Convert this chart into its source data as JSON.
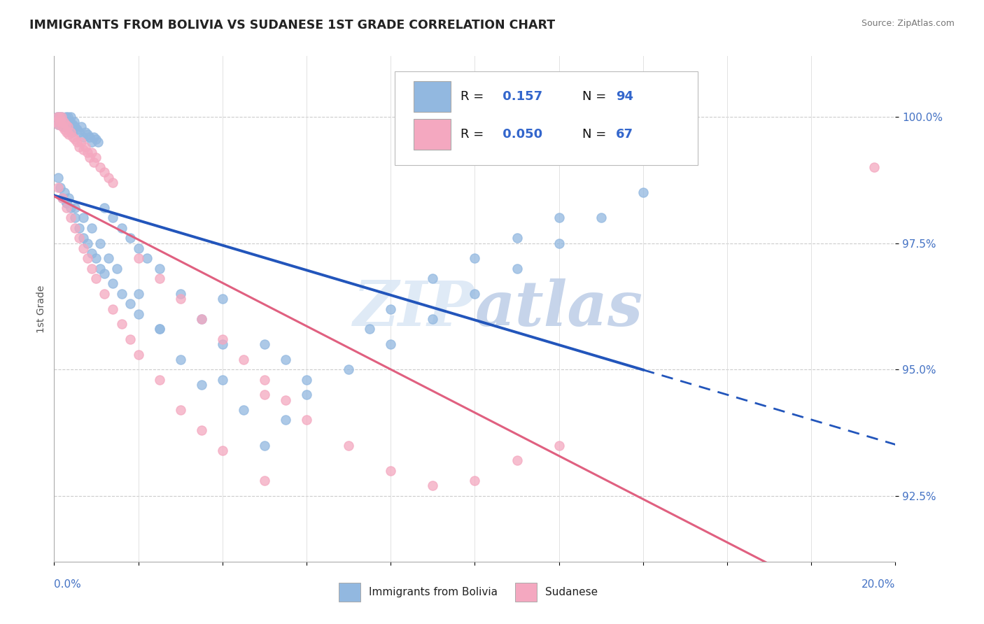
{
  "title": "IMMIGRANTS FROM BOLIVIA VS SUDANESE 1ST GRADE CORRELATION CHART",
  "source": "Source: ZipAtlas.com",
  "ylabel": "1st Grade",
  "ytick_values": [
    92.5,
    95.0,
    97.5,
    100.0
  ],
  "xmin": 0.0,
  "xmax": 20.0,
  "ymin": 91.2,
  "ymax": 101.2,
  "bolivia_color": "#92b8e0",
  "sudanese_color": "#f4a8c0",
  "bolivia_line_color": "#2255bb",
  "sudanese_line_color": "#e06080",
  "bolivia_x": [
    0.05,
    0.08,
    0.1,
    0.12,
    0.15,
    0.18,
    0.2,
    0.22,
    0.25,
    0.28,
    0.3,
    0.32,
    0.35,
    0.38,
    0.4,
    0.42,
    0.45,
    0.48,
    0.5,
    0.55,
    0.6,
    0.65,
    0.7,
    0.75,
    0.8,
    0.85,
    0.9,
    0.95,
    1.0,
    1.05,
    0.1,
    0.15,
    0.2,
    0.25,
    0.3,
    0.35,
    0.4,
    0.5,
    0.6,
    0.7,
    0.8,
    0.9,
    1.0,
    1.1,
    1.2,
    1.4,
    1.6,
    1.8,
    2.0,
    2.5,
    1.2,
    1.4,
    1.6,
    1.8,
    2.0,
    2.2,
    2.5,
    3.0,
    3.5,
    4.0,
    4.0,
    5.0,
    5.5,
    6.0,
    7.5,
    8.0,
    9.0,
    10.0,
    11.0,
    12.0,
    0.3,
    0.5,
    0.7,
    0.9,
    1.1,
    1.3,
    1.5,
    2.0,
    2.5,
    3.0,
    3.5,
    4.0,
    4.5,
    5.0,
    5.5,
    6.0,
    7.0,
    8.0,
    9.0,
    10.0,
    11.0,
    12.0,
    13.0,
    14.0
  ],
  "bolivia_y": [
    99.9,
    100.0,
    99.85,
    100.0,
    99.9,
    100.0,
    99.85,
    99.95,
    99.8,
    100.0,
    99.9,
    100.0,
    99.8,
    99.9,
    100.0,
    99.7,
    99.85,
    99.9,
    99.8,
    99.75,
    99.7,
    99.8,
    99.6,
    99.7,
    99.65,
    99.6,
    99.5,
    99.6,
    99.55,
    99.5,
    98.8,
    98.6,
    98.4,
    98.5,
    98.3,
    98.4,
    98.2,
    98.0,
    97.8,
    97.6,
    97.5,
    97.3,
    97.2,
    97.0,
    96.9,
    96.7,
    96.5,
    96.3,
    96.1,
    95.8,
    98.2,
    98.0,
    97.8,
    97.6,
    97.4,
    97.2,
    97.0,
    96.5,
    96.0,
    95.5,
    96.4,
    95.5,
    95.2,
    94.8,
    95.8,
    96.2,
    96.8,
    97.2,
    97.6,
    98.0,
    98.3,
    98.2,
    98.0,
    97.8,
    97.5,
    97.2,
    97.0,
    96.5,
    95.8,
    95.2,
    94.7,
    94.8,
    94.2,
    93.5,
    94.0,
    94.5,
    95.0,
    95.5,
    96.0,
    96.5,
    97.0,
    97.5,
    98.0,
    98.5
  ],
  "sudanese_x": [
    0.05,
    0.08,
    0.1,
    0.12,
    0.15,
    0.18,
    0.2,
    0.22,
    0.25,
    0.28,
    0.3,
    0.32,
    0.35,
    0.4,
    0.45,
    0.5,
    0.55,
    0.6,
    0.65,
    0.7,
    0.75,
    0.8,
    0.85,
    0.9,
    0.95,
    1.0,
    1.1,
    1.2,
    1.3,
    1.4,
    0.1,
    0.2,
    0.3,
    0.4,
    0.5,
    0.6,
    0.7,
    0.8,
    0.9,
    1.0,
    1.2,
    1.4,
    1.6,
    1.8,
    2.0,
    2.5,
    3.0,
    3.5,
    4.0,
    5.0,
    2.0,
    2.5,
    3.0,
    3.5,
    4.0,
    4.5,
    5.0,
    5.5,
    6.0,
    7.0,
    8.0,
    9.0,
    10.0,
    11.0,
    12.0,
    5.0,
    19.5
  ],
  "sudanese_y": [
    99.9,
    100.0,
    99.85,
    100.0,
    99.9,
    100.0,
    99.8,
    99.9,
    99.75,
    99.85,
    99.7,
    99.8,
    99.65,
    99.7,
    99.6,
    99.55,
    99.5,
    99.4,
    99.5,
    99.35,
    99.4,
    99.3,
    99.2,
    99.3,
    99.1,
    99.2,
    99.0,
    98.9,
    98.8,
    98.7,
    98.6,
    98.4,
    98.2,
    98.0,
    97.8,
    97.6,
    97.4,
    97.2,
    97.0,
    96.8,
    96.5,
    96.2,
    95.9,
    95.6,
    95.3,
    94.8,
    94.2,
    93.8,
    93.4,
    92.8,
    97.2,
    96.8,
    96.4,
    96.0,
    95.6,
    95.2,
    94.8,
    94.4,
    94.0,
    93.5,
    93.0,
    92.7,
    92.8,
    93.2,
    93.5,
    94.5,
    99.0
  ],
  "bolivia_R": 0.157,
  "bolivia_N": 94,
  "sudanese_R": 0.05,
  "sudanese_N": 67,
  "watermark_zip": "ZIP",
  "watermark_atlas": "atlas",
  "legend_bolivia_label": "Immigrants from Bolivia",
  "legend_sudanese_label": "Sudanese"
}
